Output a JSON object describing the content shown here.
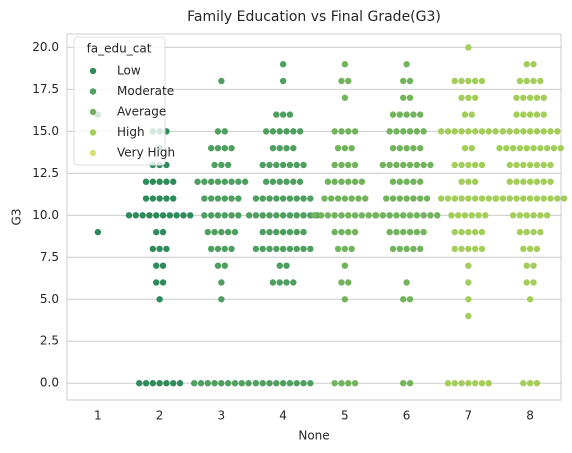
{
  "chart_data": {
    "type": "swarm",
    "title": "Family Education vs Final Grade(G3)",
    "x_label": "None",
    "y_label": "G3",
    "xlim": [
      0.5,
      8.5
    ],
    "xticks": [
      1,
      2,
      3,
      4,
      5,
      6,
      7,
      8
    ],
    "ylim": [
      -1.0,
      20.8
    ],
    "yticks": [
      {
        "value": 0,
        "label": "0.0"
      },
      {
        "value": 2.5,
        "label": "2.5"
      },
      {
        "value": 5,
        "label": "5.0"
      },
      {
        "value": 7.5,
        "label": "7.5"
      },
      {
        "value": 10,
        "label": "10.0"
      },
      {
        "value": 12.5,
        "label": "12.5"
      },
      {
        "value": 15,
        "label": "15.0"
      },
      {
        "value": 17.5,
        "label": "17.5"
      },
      {
        "value": 20,
        "label": "20.0"
      }
    ],
    "grid": true,
    "legend_title": "fa_edu_cat",
    "legend": "upper left",
    "series": [
      {
        "name": "Low",
        "color": "#2e8b5a",
        "x": [
          1,
          1,
          2,
          2,
          2,
          2,
          2,
          2,
          2,
          2,
          2,
          2,
          2,
          2
        ],
        "values": [
          9,
          16,
          0,
          5,
          6,
          7,
          8,
          9,
          10,
          11,
          12,
          13,
          14,
          15
        ],
        "counts": [
          1,
          1,
          7,
          1,
          2,
          2,
          3,
          2,
          10,
          5,
          5,
          3,
          1,
          3
        ]
      },
      {
        "name": "Moderate",
        "color": "#4fa060",
        "x": [
          3,
          3,
          3,
          3,
          3,
          3,
          3,
          3,
          3,
          3,
          3,
          3,
          3,
          4,
          4,
          4,
          4,
          4,
          4,
          4,
          4,
          4,
          4,
          4,
          4,
          4,
          4
        ],
        "values": [
          0,
          5,
          6,
          7,
          8,
          9,
          10,
          11,
          12,
          13,
          14,
          15,
          18,
          0,
          6,
          7,
          8,
          9,
          10,
          11,
          12,
          13,
          14,
          15,
          16,
          18,
          19
        ],
        "counts": [
          9,
          1,
          1,
          2,
          4,
          5,
          6,
          6,
          8,
          3,
          4,
          2,
          1,
          9,
          4,
          2,
          9,
          7,
          11,
          9,
          6,
          7,
          4,
          6,
          3,
          1,
          1
        ]
      },
      {
        "name": "Average",
        "color": "#72b45c",
        "x": [
          5,
          5,
          5,
          5,
          5,
          5,
          5,
          5,
          5,
          5,
          5,
          5,
          5,
          5,
          5,
          6,
          6,
          6,
          6,
          6,
          6,
          6,
          6,
          6,
          6,
          6,
          6,
          6,
          6,
          6
        ],
        "values": [
          0,
          5,
          6,
          7,
          8,
          9,
          10,
          11,
          12,
          13,
          14,
          15,
          17,
          18,
          19,
          0,
          5,
          6,
          8,
          9,
          10,
          11,
          12,
          13,
          14,
          15,
          16,
          17,
          18,
          19
        ],
        "counts": [
          4,
          1,
          2,
          1,
          3,
          4,
          10,
          7,
          6,
          4,
          3,
          4,
          1,
          2,
          1,
          2,
          2,
          1,
          5,
          6,
          10,
          7,
          5,
          8,
          5,
          6,
          5,
          2,
          2,
          1
        ]
      },
      {
        "name": "High",
        "color": "#a3ce5a",
        "x": [
          7,
          7,
          7,
          7,
          7,
          7,
          7,
          7,
          7,
          7,
          7,
          7,
          7,
          7,
          7,
          7,
          7,
          8,
          8,
          8,
          8,
          8,
          8,
          8,
          8,
          8,
          8,
          8,
          8,
          8,
          8,
          8,
          8
        ],
        "values": [
          0,
          4,
          5,
          6,
          7,
          8,
          9,
          10,
          11,
          12,
          13,
          14,
          15,
          16,
          17,
          18,
          20,
          0,
          5,
          6,
          7,
          8,
          9,
          10,
          11,
          12,
          13,
          14,
          15,
          16,
          17,
          18,
          19
        ],
        "counts": [
          7,
          1,
          1,
          1,
          1,
          5,
          5,
          6,
          9,
          3,
          5,
          2,
          9,
          2,
          3,
          5,
          1,
          3,
          1,
          2,
          2,
          3,
          4,
          6,
          11,
          7,
          7,
          10,
          9,
          5,
          5,
          4,
          2
        ]
      },
      {
        "name": "Very High",
        "color": "#d8e46a",
        "x": [],
        "values": [],
        "counts": []
      }
    ]
  }
}
